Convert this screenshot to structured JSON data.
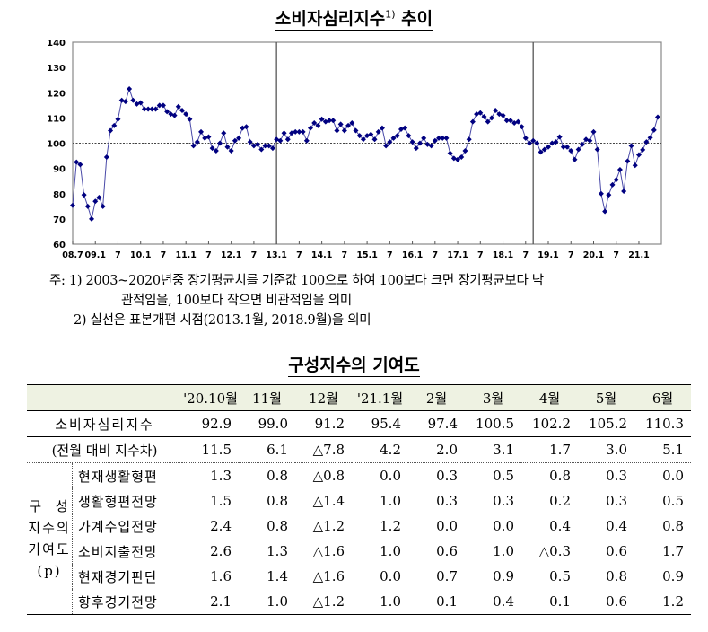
{
  "chart_title": {
    "text": "소비자심리지수",
    "sup": "1)",
    "suffix": " 추이"
  },
  "chart_data": {
    "type": "line",
    "x_start": "2008.7",
    "x_end": "2021.6",
    "x_frequency": "monthly",
    "ylim": [
      60,
      140
    ],
    "yticks": [
      60,
      70,
      80,
      90,
      100,
      110,
      120,
      130,
      140
    ],
    "xtick_labels": [
      "08.7",
      "09.1",
      "7",
      "10.1",
      "7",
      "11.1",
      "7",
      "12.1",
      "7",
      "13.1",
      "7",
      "14.1",
      "7",
      "15.1",
      "7",
      "16.1",
      "7",
      "17.1",
      "7",
      "18.1",
      "7",
      "19.1",
      "7",
      "20.1",
      "7",
      "21.1"
    ],
    "reference_line": 100,
    "vertical_lines": [
      "2013.1",
      "2018.9"
    ],
    "grid": false,
    "series_color": "#000080",
    "values": [
      75.4,
      92.5,
      91.5,
      79.5,
      75,
      70,
      77,
      78.5,
      75,
      94.5,
      105,
      107,
      109.5,
      117,
      116.5,
      121.5,
      117,
      115.5,
      116,
      113.5,
      113.5,
      113.5,
      113.5,
      115,
      115,
      112.5,
      111.5,
      111,
      114.5,
      113,
      111.5,
      109.5,
      99,
      100.5,
      104.5,
      102,
      102.5,
      98,
      97,
      100,
      104,
      98.5,
      97,
      101,
      102,
      106,
      106.5,
      100.5,
      99,
      99.5,
      97.5,
      99,
      99,
      98,
      101.5,
      101,
      104,
      101.5,
      104,
      104.5,
      104.5,
      104.5,
      101,
      106,
      108,
      107,
      109.5,
      108.5,
      109,
      109,
      105,
      107.5,
      105,
      107,
      108,
      105,
      103,
      101.5,
      103,
      103.5,
      101.5,
      104.5,
      106,
      99,
      100.5,
      102,
      103,
      105.5,
      106,
      103,
      100.5,
      98,
      100,
      102,
      99.5,
      99,
      101,
      102,
      102,
      102,
      96,
      94,
      93.5,
      94.5,
      97,
      101.5,
      108.5,
      111.5,
      112,
      110.5,
      108.5,
      110,
      113,
      111.5,
      111,
      109,
      109,
      108,
      108.5,
      106.5,
      102,
      100,
      101,
      100,
      96.5,
      97.5,
      98.5,
      100,
      100.5,
      102.5,
      98.5,
      98.5,
      97,
      93.5,
      97.5,
      99.5,
      101.5,
      101,
      104.5,
      97.5,
      80,
      73,
      79.5,
      83.5,
      85.5,
      89.5,
      81,
      92.9,
      99.0,
      91.2,
      95.4,
      97.4,
      100.5,
      102.2,
      105.2,
      110.3
    ]
  },
  "notes": [
    "주: 1) 2003~2020년중 장기평균치를 기준값 100으로 하여 100보다 크면 장기평균보다 낙",
    "관적임을, 100보다 작으면 비관적임을 의미",
    "2) 실선은 표본개편 시점(2013.1월, 2018.9월)을 의미"
  ],
  "table_title": "구성지수의 기여도",
  "table": {
    "headers": [
      "'20.10월",
      "11월",
      "12월",
      "'21.1월",
      "2월",
      "3월",
      "4월",
      "5월",
      "6월"
    ],
    "index_row": {
      "label": "소비자심리지수",
      "values": [
        "92.9",
        "99.0",
        "91.2",
        "95.4",
        "97.4",
        "100.5",
        "102.2",
        "105.2",
        "110.3"
      ]
    },
    "diff_row": {
      "label": "(전월 대비 지수차)",
      "values": [
        "11.5",
        "6.1",
        "△7.8",
        "4.2",
        "2.0",
        "3.1",
        "1.7",
        "3.0",
        "5.1"
      ]
    },
    "group_label": [
      "구  성",
      "지수의",
      "기여도",
      "(p)"
    ],
    "rows": [
      {
        "label": "현재생활형편",
        "values": [
          "1.3",
          "0.8",
          "△0.8",
          "0.0",
          "0.3",
          "0.5",
          "0.8",
          "0.3",
          "0.0"
        ]
      },
      {
        "label": "생활형편전망",
        "values": [
          "1.5",
          "0.8",
          "△1.4",
          "1.0",
          "0.3",
          "0.3",
          "0.2",
          "0.3",
          "0.5"
        ]
      },
      {
        "label": "가계수입전망",
        "values": [
          "2.4",
          "0.8",
          "△1.2",
          "1.2",
          "0.0",
          "0.0",
          "0.4",
          "0.4",
          "0.8"
        ]
      },
      {
        "label": "소비지출전망",
        "values": [
          "2.6",
          "1.3",
          "△1.6",
          "1.0",
          "0.6",
          "1.0",
          "△0.3",
          "0.6",
          "1.7"
        ]
      },
      {
        "label": "현재경기판단",
        "values": [
          "1.6",
          "1.4",
          "△1.6",
          "0.0",
          "0.7",
          "0.9",
          "0.5",
          "0.8",
          "0.9"
        ]
      },
      {
        "label": "향후경기전망",
        "values": [
          "2.1",
          "1.0",
          "△1.2",
          "1.0",
          "0.1",
          "0.4",
          "0.1",
          "0.6",
          "1.2"
        ]
      }
    ]
  }
}
